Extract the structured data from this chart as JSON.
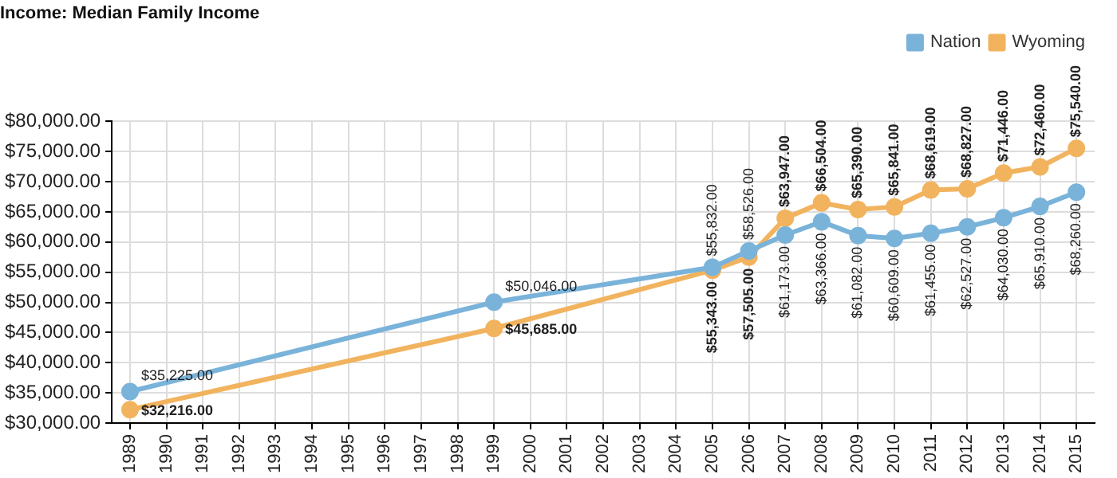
{
  "chart_data": {
    "type": "line",
    "title": "Income: Median Family Income",
    "categories": [
      "1989",
      "1990",
      "1991",
      "1992",
      "1993",
      "1994",
      "1995",
      "1996",
      "1997",
      "1998",
      "1999",
      "2000",
      "2001",
      "2002",
      "2003",
      "2004",
      "2005",
      "2006",
      "2007",
      "2008",
      "2009",
      "2010",
      "2011",
      "2012",
      "2013",
      "2014",
      "2015"
    ],
    "series": [
      {
        "name": "Nation",
        "color": "#7ab3da",
        "values": [
          35225,
          null,
          null,
          null,
          null,
          null,
          null,
          null,
          null,
          null,
          50046,
          null,
          null,
          null,
          null,
          null,
          55832,
          58526,
          61173,
          63366,
          61082,
          60609,
          61455,
          62527,
          64030,
          65910,
          68260
        ],
        "value_labels": [
          "$35,225.00",
          null,
          null,
          null,
          null,
          null,
          null,
          null,
          null,
          null,
          "$50,046.00",
          null,
          null,
          null,
          null,
          null,
          "$55,832.00",
          "$58,526.00",
          "$61,173.00",
          "$63,366.00",
          "$61,082.00",
          "$60,609.00",
          "$61,455.00",
          "$62,527.00",
          "$64,030.00",
          "$65,910.00",
          "$68,260.00"
        ]
      },
      {
        "name": "Wyoming",
        "color": "#f2b35e",
        "values": [
          32216,
          null,
          null,
          null,
          null,
          null,
          null,
          null,
          null,
          null,
          45685,
          null,
          null,
          null,
          null,
          null,
          55343,
          57505,
          63947,
          66504,
          65390,
          65841,
          68619,
          68827,
          71446,
          72460,
          75540
        ],
        "value_labels": [
          "$32,216.00",
          null,
          null,
          null,
          null,
          null,
          null,
          null,
          null,
          null,
          "$45,685.00",
          null,
          null,
          null,
          null,
          null,
          "$55,343.00",
          "$57,505.00",
          "$63,947.00",
          "$66,504.00",
          "$65,390.00",
          "$65,841.00",
          "$68,619.00",
          "$68,827.00",
          "$71,446.00",
          "$72,460.00",
          "$75,540.00"
        ]
      }
    ],
    "ylim": [
      30000,
      80000
    ],
    "yticks": [
      {
        "value": 30000,
        "label": "$30,000.00"
      },
      {
        "value": 35000,
        "label": "$35,000.00"
      },
      {
        "value": 40000,
        "label": "$40,000.00"
      },
      {
        "value": 45000,
        "label": "$45,000.00"
      },
      {
        "value": 50000,
        "label": "$50,000.00"
      },
      {
        "value": 55000,
        "label": "$55,000.00"
      },
      {
        "value": 60000,
        "label": "$60,000.00"
      },
      {
        "value": 65000,
        "label": "$65,000.00"
      },
      {
        "value": 70000,
        "label": "$70,000.00"
      },
      {
        "value": 75000,
        "label": "$75,000.00"
      },
      {
        "value": 80000,
        "label": "$80,000.00"
      }
    ],
    "grid": true,
    "legend": "top right",
    "marker": "circle",
    "line_style": "solid"
  }
}
